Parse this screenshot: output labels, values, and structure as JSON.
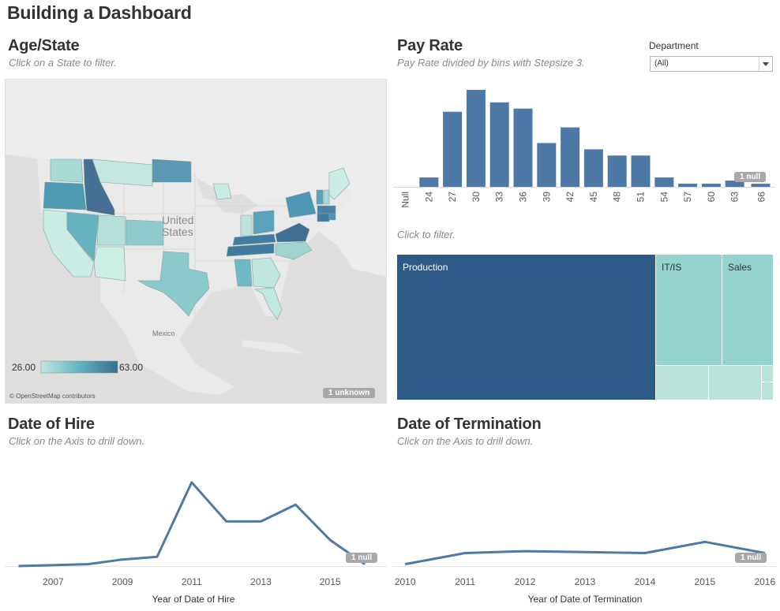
{
  "dashboard_title": "Building a Dashboard",
  "age_state": {
    "title": "Age/State",
    "subtitle": "Click on a State to filter.",
    "map_country_label": "United States",
    "map_country_line1": "United",
    "map_country_line2": "States",
    "map_mexico_label": "Mexico",
    "legend_min": "26.00",
    "legend_max": "63.00",
    "attribution": "© OpenStreetMap contributors",
    "unknown_badge": "1 unknown",
    "colors": {
      "low": "#c4e6df",
      "mid": "#5aaebf",
      "high": "#3d6c91"
    }
  },
  "pay_rate": {
    "title": "Pay Rate",
    "subtitle": "Pay Rate divided by bins with Stepsize 3.",
    "null_badge": "1 null",
    "filter_hint": "Click to filter.",
    "bar_color": "#4e79a7"
  },
  "department_filter": {
    "label": "Department",
    "selected": "(All)"
  },
  "treemap": {
    "items": [
      {
        "label": "Production",
        "color": "#2e5a87"
      },
      {
        "label": "IT/IS",
        "color": "#93d2cd"
      },
      {
        "label": "Sales",
        "color": "#93d2cd"
      }
    ]
  },
  "date_of_hire": {
    "title": "Date of Hire",
    "subtitle": "Click on the Axis to drill down.",
    "null_badge": "1 null"
  },
  "date_of_termination": {
    "title": "Date of  Termination",
    "subtitle": "Click on the Axis to drill down.",
    "null_badge": "1 null"
  },
  "chart_data": [
    {
      "type": "bar",
      "categories": [
        "Null",
        "24",
        "27",
        "30",
        "33",
        "36",
        "39",
        "42",
        "45",
        "48",
        "51",
        "54",
        "57",
        "60",
        "63",
        "66"
      ],
      "values": [
        0,
        3,
        24,
        31,
        27,
        25,
        14,
        19,
        12,
        10,
        10,
        3,
        1,
        1,
        2,
        1
      ],
      "title": "Pay Rate",
      "ylim": [
        0,
        33
      ]
    },
    {
      "type": "line",
      "x": [
        2006,
        2008,
        2009,
        2010,
        2011,
        2012,
        2013,
        2014,
        2015,
        2016
      ],
      "values": [
        0,
        1,
        3.5,
        5,
        45,
        24,
        24,
        33,
        14,
        1
      ],
      "xticks": [
        2007,
        2009,
        2011,
        2013,
        2015
      ],
      "xlabel": "Year of Date of Hire",
      "xlim": [
        2005.6,
        2016.5
      ],
      "ylim": [
        0,
        50
      ]
    },
    {
      "type": "line",
      "x": [
        2010,
        2011,
        2012,
        2013,
        2014,
        2015,
        2016
      ],
      "values": [
        1,
        7,
        8,
        7.5,
        7,
        13,
        7
      ],
      "xticks": [
        2010,
        2011,
        2012,
        2013,
        2014,
        2015,
        2016
      ],
      "xlabel": "Year of Date of Termination",
      "xlim": [
        2009.8,
        2016.2
      ],
      "ylim": [
        0,
        50
      ]
    }
  ]
}
